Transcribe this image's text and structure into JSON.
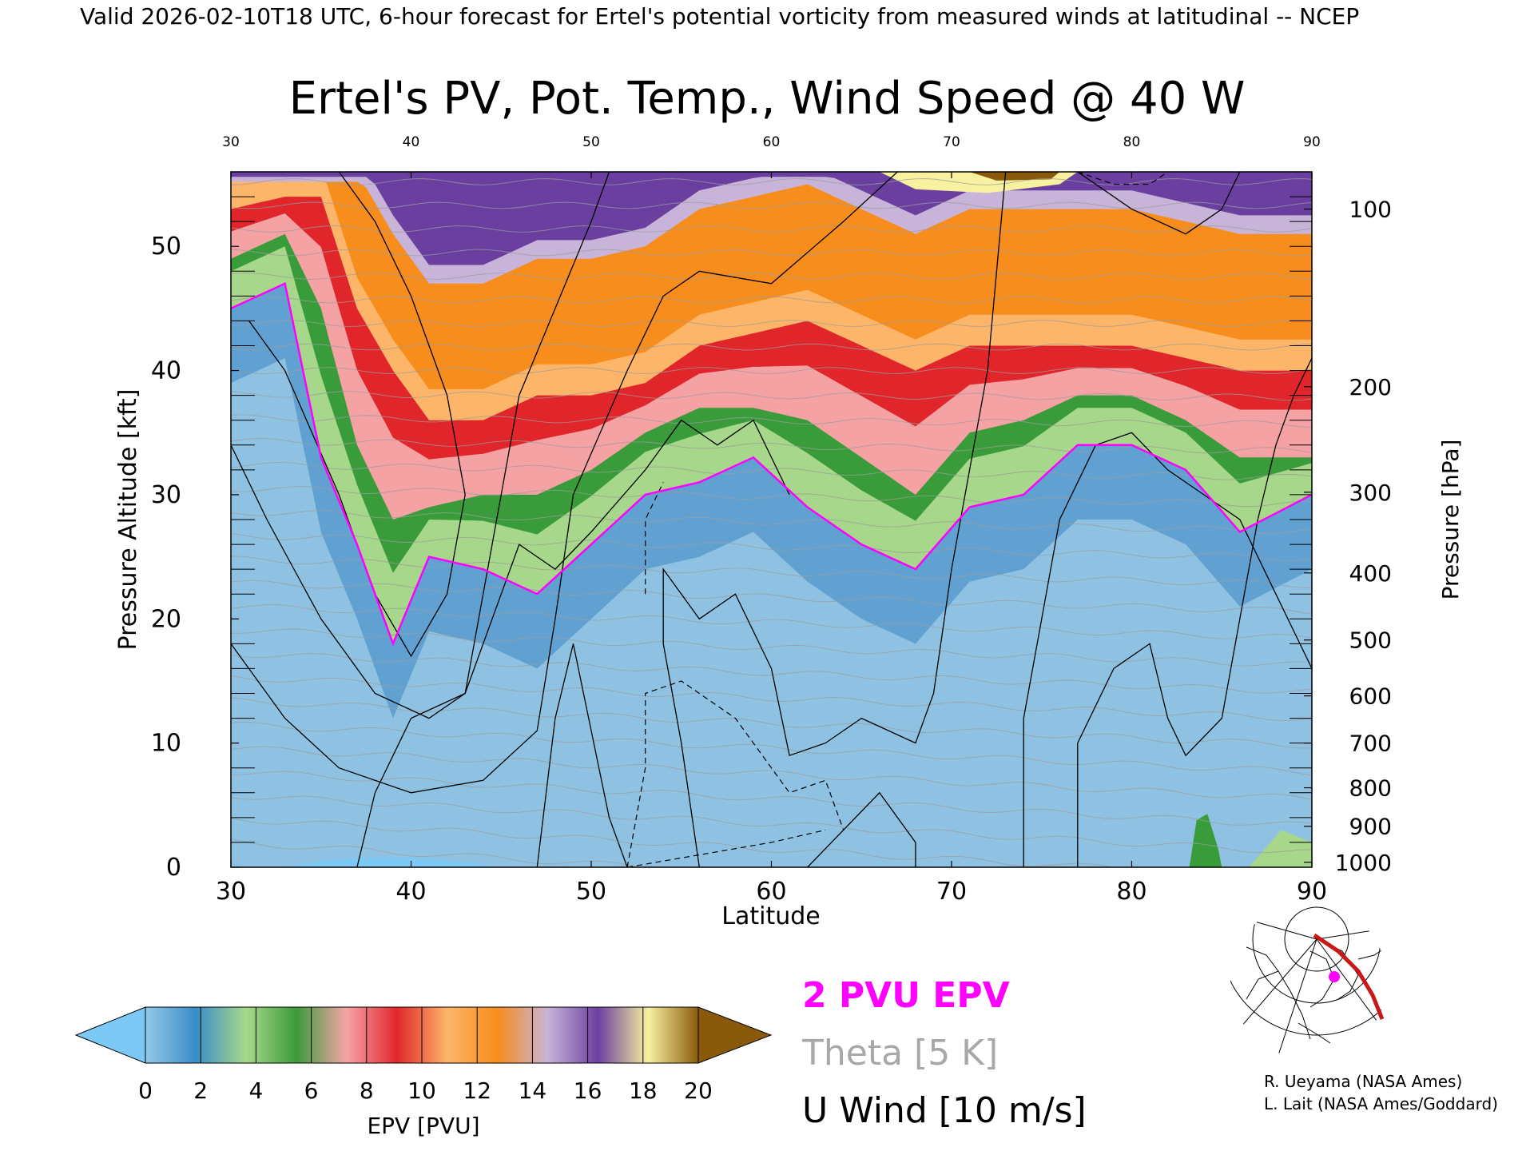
{
  "header": {
    "valid_line": "Valid 2026-02-10T18 UTC, 6-hour forecast for Ertel's potential vorticity from measured winds at latitudinal -- NCEP"
  },
  "chart_data": {
    "type": "heatmap",
    "title": "Ertel's PV, Pot. Temp., Wind Speed @ 40 W",
    "xlabel": "Latitude",
    "ylabel_left": "Pressure Altitude [kft]",
    "ylabel_right": "Pressure [hPa]",
    "xlim": [
      30,
      90
    ],
    "ylim": [
      0,
      56
    ],
    "x_ticks": [
      30,
      40,
      50,
      60,
      70,
      80,
      90
    ],
    "y_ticks": [
      0,
      10,
      20,
      30,
      40,
      50
    ],
    "pressure_ticks": [
      {
        "label": "100",
        "kft": 53
      },
      {
        "label": "200",
        "kft": 38.7
      },
      {
        "label": "300",
        "kft": 30.2
      },
      {
        "label": "400",
        "kft": 23.7
      },
      {
        "label": "500",
        "kft": 18.3
      },
      {
        "label": "600",
        "kft": 13.8
      },
      {
        "label": "700",
        "kft": 10
      },
      {
        "label": "800",
        "kft": 6.4
      },
      {
        "label": "900",
        "kft": 3.3
      },
      {
        "label": "1000",
        "kft": 0.4
      }
    ],
    "epv_levels_pvu": [
      {
        "lat": 30,
        "pv2": 45,
        "pv4": 49,
        "pv8": 53
      },
      {
        "lat": 33,
        "pv2": 47,
        "pv4": 51,
        "pv8": 54
      },
      {
        "lat": 35,
        "pv2": 33,
        "pv4": 45,
        "pv8": 54
      },
      {
        "lat": 37,
        "pv2": 26,
        "pv4": 34,
        "pv8": 45
      },
      {
        "lat": 39,
        "pv2": 18,
        "pv4": 28,
        "pv8": 40
      },
      {
        "lat": 41,
        "pv2": 25,
        "pv4": 29,
        "pv8": 36
      },
      {
        "lat": 44,
        "pv2": 24,
        "pv4": 30,
        "pv8": 36
      },
      {
        "lat": 47,
        "pv2": 22,
        "pv4": 30,
        "pv8": 38
      },
      {
        "lat": 50,
        "pv2": 26,
        "pv4": 32,
        "pv8": 38
      },
      {
        "lat": 53,
        "pv2": 30,
        "pv4": 35,
        "pv8": 39
      },
      {
        "lat": 56,
        "pv2": 31,
        "pv4": 37,
        "pv8": 42
      },
      {
        "lat": 59,
        "pv2": 33,
        "pv4": 37,
        "pv8": 43
      },
      {
        "lat": 62,
        "pv2": 29,
        "pv4": 36,
        "pv8": 44
      },
      {
        "lat": 65,
        "pv2": 26,
        "pv4": 33,
        "pv8": 42
      },
      {
        "lat": 68,
        "pv2": 24,
        "pv4": 30,
        "pv8": 40
      },
      {
        "lat": 71,
        "pv2": 29,
        "pv4": 35,
        "pv8": 42
      },
      {
        "lat": 74,
        "pv2": 30,
        "pv4": 36,
        "pv8": 42
      },
      {
        "lat": 77,
        "pv2": 34,
        "pv4": 38,
        "pv8": 42
      },
      {
        "lat": 80,
        "pv2": 34,
        "pv4": 38,
        "pv8": 42
      },
      {
        "lat": 83,
        "pv2": 32,
        "pv4": 36,
        "pv8": 41
      },
      {
        "lat": 86,
        "pv2": 27,
        "pv4": 33,
        "pv8": 40
      },
      {
        "lat": 90,
        "pv2": 30,
        "pv4": 33,
        "pv8": 40
      }
    ],
    "colorbar": {
      "label": "EPV [PVU]",
      "ticks": [
        "0",
        "2",
        "4",
        "6",
        "8",
        "10",
        "12",
        "14",
        "16",
        "18",
        "20"
      ],
      "colors": [
        "#92c9e8",
        "#3a8cc8",
        "#a8d98a",
        "#3b9a3b",
        "#f7a4a8",
        "#e0262b",
        "#fdb56a",
        "#f68d1c",
        "#c9b4d9",
        "#6b3fa0",
        "#f7f1a0",
        "#8a5a0c"
      ],
      "under_color": "#7cc9f5",
      "over_color": "#8a5a0c"
    },
    "legend": [
      {
        "label": "2 PVU EPV",
        "color": "#ff00ff"
      },
      {
        "label": "Theta [5 K]",
        "color": "#a8a8a8"
      },
      {
        "label": "U Wind [10 m/s]",
        "color": "#000000"
      }
    ]
  },
  "credits": {
    "line1": "R. Ueyama (NASA Ames)",
    "line2": "L. Lait (NASA Ames/Goddard)"
  }
}
